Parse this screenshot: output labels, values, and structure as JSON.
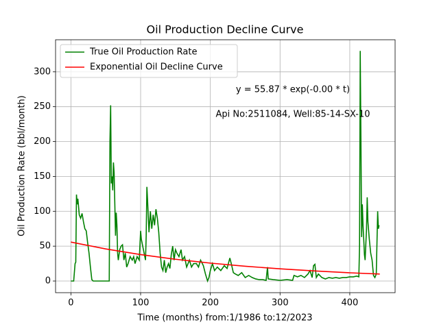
{
  "chart_data": {
    "type": "line",
    "title": "Oil Production Decline Curve",
    "x_label": "Time (months) from:1/1986 to:12/2023",
    "y_label": "Oil Production Rate (bbl/month)",
    "annotations": [
      "y = 55.87 * exp(-0.00 * t)",
      "Api No:2511084, Well:85-14-SX-10"
    ],
    "xlim": [
      -22,
      465
    ],
    "ylim": [
      -16.7,
      346
    ],
    "xticks": [
      0,
      100,
      200,
      300,
      400
    ],
    "yticks": [
      0,
      50,
      100,
      150,
      200,
      250,
      300
    ],
    "grid": true,
    "legend": "upper left",
    "series": [
      {
        "name": "True Oil Production Rate",
        "color": "#008000",
        "x": [
          0,
          4,
          6,
          7,
          8,
          9,
          10,
          12,
          14,
          16,
          18,
          20,
          22,
          24,
          26,
          28,
          30,
          32,
          40,
          50,
          55,
          56,
          57,
          58,
          59,
          60,
          61,
          62,
          63,
          64,
          65,
          66,
          67,
          68,
          70,
          72,
          74,
          76,
          78,
          80,
          82,
          85,
          88,
          90,
          92,
          95,
          98,
          100,
          101,
          103,
          105,
          107,
          108,
          109,
          110,
          112,
          114,
          116,
          118,
          120,
          122,
          124,
          126,
          128,
          130,
          132,
          134,
          136,
          138,
          140,
          142,
          144,
          146,
          148,
          150,
          152,
          155,
          158,
          160,
          163,
          166,
          170,
          173,
          176,
          180,
          183,
          186,
          190,
          193,
          196,
          198,
          200,
          203,
          206,
          210,
          215,
          220,
          224,
          228,
          230,
          233,
          236,
          240,
          245,
          250,
          255,
          260,
          265,
          270,
          275,
          280,
          282,
          283,
          290,
          300,
          310,
          318,
          320,
          325,
          330,
          335,
          340,
          343,
          346,
          348,
          350,
          352,
          355,
          360,
          365,
          370,
          375,
          380,
          385,
          390,
          395,
          400,
          405,
          410,
          413,
          414,
          415,
          416,
          417,
          418,
          419,
          420,
          421,
          422,
          424,
          425,
          426,
          428,
          430,
          432,
          434,
          436,
          438,
          440,
          441,
          442
        ],
        "values": [
          0,
          0,
          25,
          27,
          124,
          110,
          118,
          95,
          90,
          97,
          85,
          75,
          72,
          55,
          40,
          20,
          2,
          0,
          0,
          0,
          0,
          200,
          252,
          140,
          150,
          130,
          170,
          155,
          110,
          65,
          98,
          80,
          40,
          30,
          45,
          50,
          52,
          30,
          40,
          20,
          25,
          35,
          30,
          35,
          25,
          35,
          30,
          72,
          60,
          50,
          40,
          30,
          65,
          135,
          115,
          70,
          100,
          75,
          95,
          80,
          103,
          90,
          70,
          40,
          20,
          15,
          30,
          12,
          20,
          25,
          18,
          38,
          50,
          30,
          45,
          40,
          35,
          45,
          30,
          35,
          20,
          30,
          20,
          25,
          25,
          20,
          30,
          22,
          10,
          0,
          5,
          15,
          25,
          15,
          20,
          15,
          22,
          18,
          33,
          25,
          12,
          10,
          8,
          12,
          5,
          8,
          5,
          3,
          2,
          2,
          1,
          20,
          3,
          2,
          1,
          2,
          1,
          8,
          6,
          8,
          5,
          10,
          15,
          5,
          22,
          24,
          5,
          10,
          5,
          3,
          5,
          4,
          5,
          4,
          5,
          5,
          6,
          6,
          7,
          6,
          50,
          330,
          200,
          63,
          110,
          80,
          60,
          38,
          30,
          75,
          120,
          85,
          60,
          40,
          30,
          8,
          5,
          10,
          100,
          75,
          80
        ]
      },
      {
        "name": "Exponential Oil Decline Curve",
        "color": "#ff0000",
        "x": [
          0,
          50,
          100,
          150,
          200,
          250,
          300,
          350,
          400,
          443
        ],
        "values": [
          55.87,
          46.0,
          37.9,
          31.2,
          25.7,
          21.2,
          17.5,
          14.4,
          11.8,
          10.0
        ]
      }
    ]
  }
}
